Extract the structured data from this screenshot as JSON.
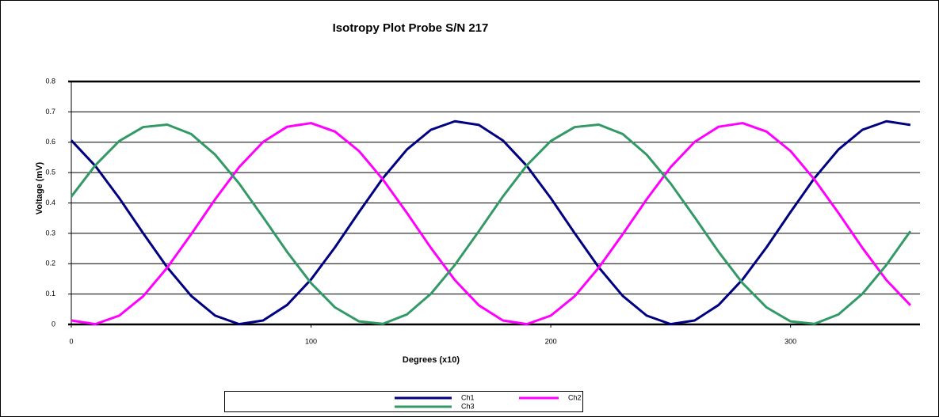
{
  "chart_data": {
    "type": "line",
    "title": "Isotropy Plot Probe S/N 217",
    "xlabel": "Degrees (x10)",
    "ylabel": "Voltage (mV)",
    "x": [
      0,
      10,
      20,
      30,
      40,
      50,
      60,
      70,
      80,
      90,
      100,
      110,
      120,
      130,
      140,
      150,
      160,
      170,
      180,
      190,
      200,
      210,
      220,
      230,
      240,
      250,
      260,
      270,
      280,
      290,
      300,
      310,
      320,
      330,
      340,
      350
    ],
    "series": [
      {
        "name": "Ch1",
        "color": "#000080",
        "values": [
          0.606,
          0.522,
          0.416,
          0.3,
          0.188,
          0.094,
          0.029,
          0.001,
          0.013,
          0.064,
          0.148,
          0.254,
          0.37,
          0.482,
          0.576,
          0.641,
          0.669,
          0.657,
          0.606,
          0.522,
          0.416,
          0.3,
          0.188,
          0.094,
          0.029,
          0.001,
          0.013,
          0.064,
          0.148,
          0.254,
          0.37,
          0.482,
          0.576,
          0.641,
          0.669,
          0.657
        ]
      },
      {
        "name": "Ch2",
        "color": "#ff00ff",
        "values": [
          0.013,
          0.001,
          0.029,
          0.093,
          0.187,
          0.297,
          0.412,
          0.518,
          0.601,
          0.651,
          0.663,
          0.635,
          0.571,
          0.477,
          0.367,
          0.252,
          0.146,
          0.063,
          0.013,
          0.001,
          0.029,
          0.093,
          0.187,
          0.297,
          0.412,
          0.518,
          0.601,
          0.651,
          0.663,
          0.635,
          0.571,
          0.477,
          0.367,
          0.252,
          0.146,
          0.063
        ]
      },
      {
        "name": "Ch3",
        "color": "#339966",
        "values": [
          0.421,
          0.524,
          0.604,
          0.65,
          0.658,
          0.627,
          0.559,
          0.464,
          0.353,
          0.239,
          0.136,
          0.056,
          0.01,
          0.002,
          0.033,
          0.101,
          0.196,
          0.307,
          0.421,
          0.524,
          0.604,
          0.65,
          0.658,
          0.627,
          0.559,
          0.464,
          0.353,
          0.239,
          0.136,
          0.056,
          0.01,
          0.002,
          0.033,
          0.101,
          0.196,
          0.307
        ]
      }
    ],
    "xlim": [
      0,
      354
    ],
    "xticks": [
      0,
      100,
      200,
      300
    ],
    "ylim": [
      0,
      0.8
    ],
    "yticks": [
      0,
      0.1,
      0.2,
      0.3,
      0.4,
      0.5,
      0.6,
      0.7,
      0.8
    ],
    "grid": true,
    "legend": "bottom"
  }
}
